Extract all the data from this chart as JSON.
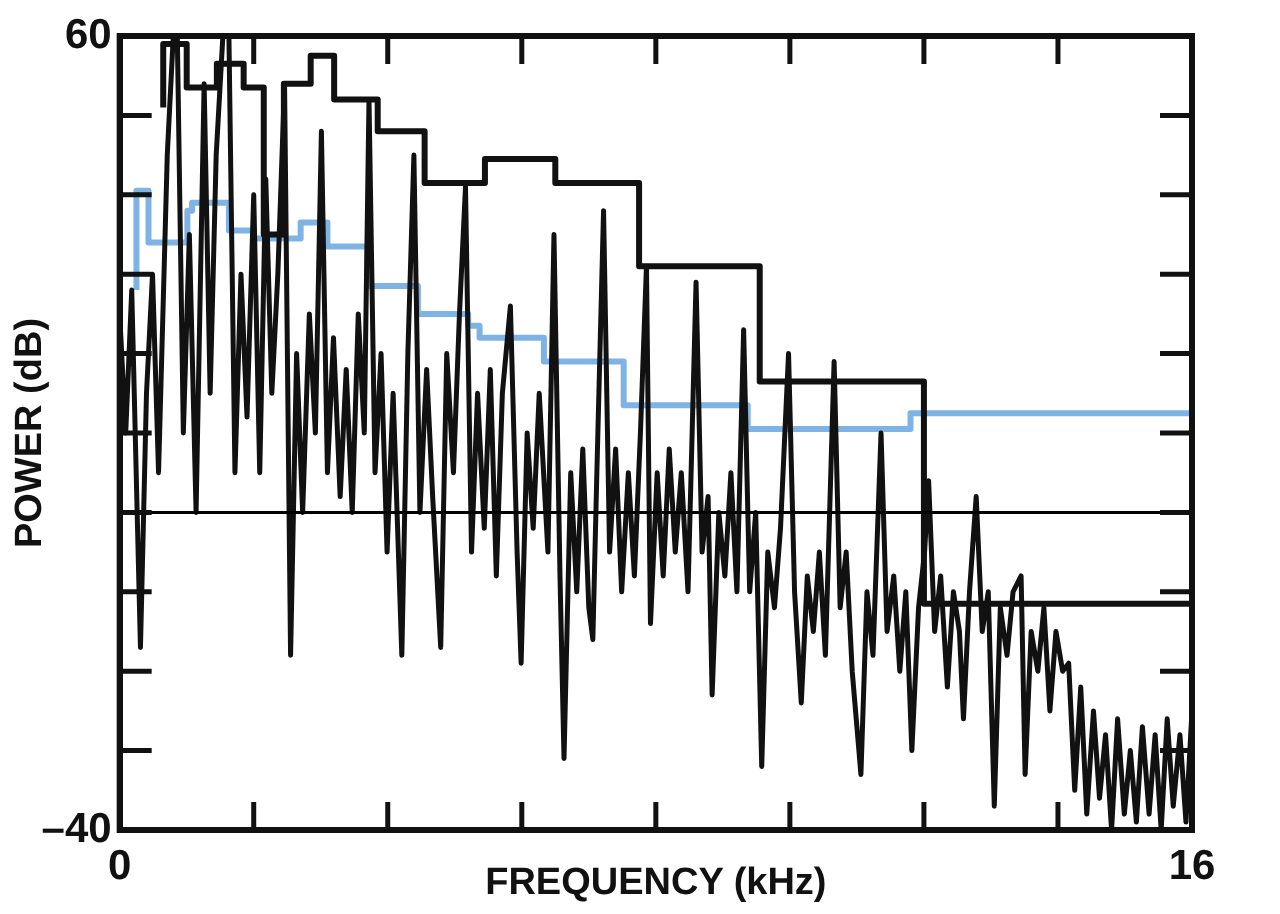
{
  "chart_data": {
    "type": "line",
    "xlabel": "FREQUENCY (kHz)",
    "ylabel": "POWER (dB)",
    "xlim": [
      0,
      16
    ],
    "ylim": [
      -40,
      60
    ],
    "xticks": [
      0,
      {
        "value": 2,
        "label": null
      },
      {
        "value": 4,
        "label": null
      },
      {
        "value": 6,
        "label": null
      },
      {
        "value": 8,
        "label": null
      },
      {
        "value": 10,
        "label": null
      },
      {
        "value": 12,
        "label": null
      },
      {
        "value": 14,
        "label": null
      },
      16
    ],
    "yticks": [
      {
        "value": -40,
        "label": "–40"
      },
      {
        "value": -30,
        "label": null
      },
      {
        "value": -20,
        "label": null
      },
      {
        "value": -10,
        "label": null
      },
      {
        "value": 0,
        "label": null
      },
      {
        "value": 10,
        "label": null
      },
      {
        "value": 20,
        "label": null
      },
      {
        "value": 30,
        "label": null
      },
      {
        "value": 40,
        "label": null
      },
      {
        "value": 50,
        "label": null
      },
      60
    ],
    "grid": false,
    "legend": false,
    "marker": "none",
    "line_style": "solid",
    "ref_lines": [
      {
        "axis": "y",
        "value": 0,
        "label": null,
        "color": "#000000"
      }
    ],
    "series": [
      {
        "color": "#111111",
        "x": [
          0,
          0.09,
          0.18,
          0.31,
          0.4,
          0.49,
          0.58,
          0.71,
          0.8,
          0.86,
          0.95,
          1.04,
          1.14,
          1.26,
          1.35,
          1.44,
          1.54,
          1.63,
          1.72,
          1.81,
          1.9,
          2,
          2.09,
          2.18,
          2.27,
          2.36,
          2.46,
          2.55,
          2.64,
          2.73,
          2.83,
          2.92,
          3.01,
          3.1,
          3.19,
          3.29,
          3.38,
          3.47,
          3.56,
          3.65,
          3.72,
          3.81,
          3.9,
          3.99,
          4.08,
          4.21,
          4.3,
          4.39,
          4.48,
          4.58,
          4.67,
          4.79,
          4.88,
          4.98,
          5.07,
          5.16,
          5.25,
          5.34,
          5.44,
          5.53,
          5.62,
          5.71,
          5.83,
          5.93,
          5.99,
          6.08,
          6.17,
          6.26,
          6.39,
          6.48,
          6.57,
          6.63,
          6.73,
          6.82,
          6.91,
          7,
          7.06,
          7.12,
          7.22,
          7.31,
          7.4,
          7.49,
          7.59,
          7.68,
          7.77,
          7.86,
          7.92,
          8.02,
          8.11,
          8.2,
          8.29,
          8.38,
          8.48,
          8.6,
          8.69,
          8.78,
          8.84,
          8.94,
          9.03,
          9.12,
          9.21,
          9.31,
          9.4,
          9.49,
          9.58,
          9.67,
          9.77,
          9.86,
          9.98,
          10.07,
          10.17,
          10.26,
          10.35,
          10.44,
          10.53,
          10.66,
          10.75,
          10.84,
          10.93,
          11.06,
          11.15,
          11.24,
          11.36,
          11.45,
          11.55,
          11.64,
          11.73,
          11.82,
          11.92,
          12.01,
          12.07,
          12.16,
          12.25,
          12.35,
          12.44,
          12.53,
          12.59,
          12.68,
          12.78,
          12.87,
          12.96,
          13.05,
          13.14,
          13.24,
          13.33,
          13.45,
          13.51,
          13.6,
          13.7,
          13.79,
          13.88,
          13.97,
          14.07,
          14.16,
          14.25,
          14.34,
          14.43,
          14.53,
          14.62,
          14.71,
          14.8,
          14.89,
          14.99,
          15.08,
          15.17,
          15.26,
          15.36,
          15.45,
          15.54,
          15.63,
          15.72,
          15.82,
          15.91,
          16
        ],
        "values": [
          25,
          10,
          28,
          -17,
          15,
          30,
          5,
          45,
          60,
          60,
          10,
          35,
          0,
          54,
          15,
          45,
          60,
          60,
          5,
          30,
          12,
          40,
          5,
          42,
          15,
          30,
          54,
          -18,
          20,
          0,
          25,
          10,
          48,
          5,
          22,
          2,
          18,
          0,
          25,
          10,
          52,
          5,
          20,
          -5,
          15,
          -18,
          20,
          45,
          0,
          18,
          2,
          -17,
          20,
          5,
          25,
          41,
          -5,
          15,
          -2,
          18,
          -8,
          15,
          26,
          -5,
          -19,
          10,
          -2,
          15,
          -5,
          35,
          -8,
          -31,
          5,
          -10,
          8,
          -12,
          -16,
          5,
          38,
          -5,
          8,
          -10,
          5,
          -8,
          10,
          31,
          -14,
          5,
          -8,
          8,
          -5,
          5,
          -10,
          29,
          -5,
          2,
          -23,
          0,
          -8,
          5,
          -10,
          23,
          -10,
          0,
          -32,
          -5,
          -12,
          -2,
          20,
          -10,
          -24,
          -8,
          -15,
          -5,
          -18,
          19,
          -12,
          -5,
          -20,
          -33,
          -10,
          -18,
          10,
          -15,
          -8,
          -20,
          -10,
          -30,
          -12,
          -5,
          4,
          -15,
          -8,
          -22,
          -10,
          -15,
          -26,
          -10,
          2,
          -15,
          -10,
          -37,
          -12,
          -18,
          -10,
          -8,
          -33,
          -15,
          -20,
          -12,
          -25,
          -15,
          -20,
          -19,
          -35,
          -22,
          -38,
          -25,
          -36,
          -28,
          -40,
          -26,
          -38,
          -30,
          -39,
          -27,
          -38,
          -28,
          -40,
          -26,
          -37,
          -28,
          -39,
          -25
        ]
      },
      {
        "type": "step",
        "color": "#111111",
        "x": [
          0.65,
          1,
          1.45,
          1.85,
          2.15,
          2.45,
          2.85,
          3.2,
          3.85,
          4.55,
          5.45,
          6.5,
          7.75,
          9.55,
          12,
          15.45,
          16
        ],
        "values": [
          51,
          59,
          53.5,
          56.5,
          53.5,
          35,
          54,
          57.5,
          52,
          48,
          41.5,
          44.5,
          41.5,
          31,
          16.5,
          -11.5,
          -11.5
        ]
      },
      {
        "type": "step",
        "color": "#7fb3e3",
        "x": [
          0.25,
          0.43,
          1.01,
          1.08,
          1.63,
          2,
          2.7,
          3.1,
          3.7,
          4.45,
          5.2,
          5.37,
          6.33,
          7.52,
          9.37,
          11.8,
          15.4,
          16
        ],
        "values": [
          28,
          40.5,
          34,
          38,
          39,
          35.5,
          34.5,
          36.5,
          33.5,
          28.5,
          25,
          23.5,
          22,
          19,
          13.5,
          10.5,
          12.5,
          12.5
        ]
      }
    ]
  }
}
